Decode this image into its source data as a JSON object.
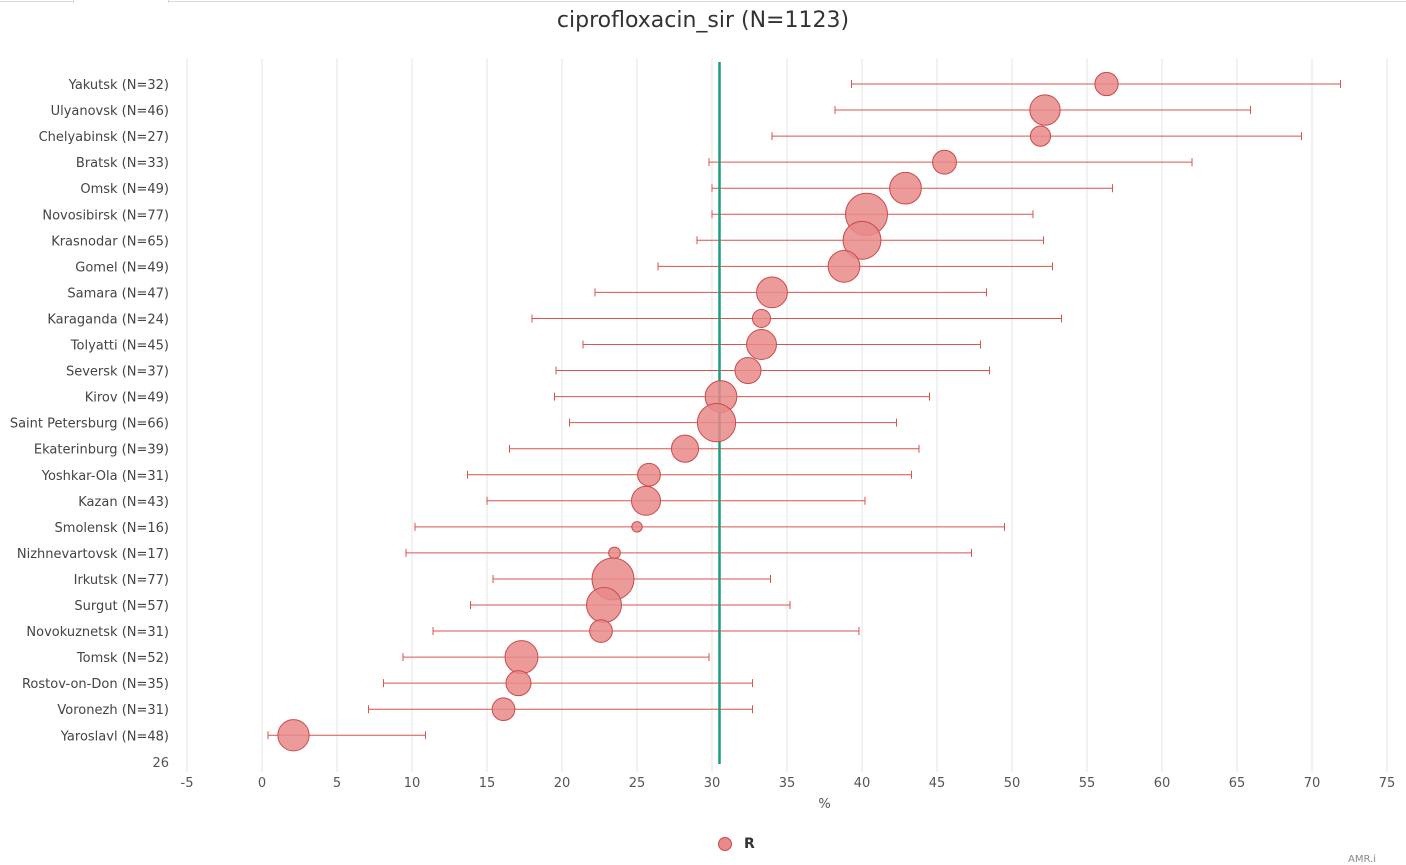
{
  "tab": {
    "label": ""
  },
  "legend": {
    "label": "R",
    "color": "#e9898a",
    "border_color": "#c94a4c"
  },
  "corner_text": "AMR.i",
  "colors": {
    "point_fill": "#e9898a",
    "point_stroke": "#c94a4c",
    "error_bar": "#d9534f",
    "reference_line": "#1a9e7f",
    "grid": "#e6e6e6"
  },
  "chart_data": {
    "type": "scatter",
    "subtype": "forest-plot-with-error-bars",
    "title": "ciprofloxacin_sir (N=1123)",
    "xlabel": "%",
    "ylabel": "",
    "xlim": [
      -5,
      75
    ],
    "xticks": [
      -5,
      0,
      5,
      10,
      15,
      20,
      25,
      30,
      35,
      40,
      45,
      50,
      55,
      60,
      65,
      70,
      75
    ],
    "extra_ytick_label": "26",
    "reference_line_x": 30.5,
    "grid": {
      "vertical": true,
      "horizontal": false
    },
    "legend_position": "bottom",
    "series": [
      {
        "name": "R"
      }
    ],
    "rows": [
      {
        "label": "Yakutsk (N=32)",
        "n": 32,
        "value": 56.3,
        "ci_low": 39.3,
        "ci_high": 71.9
      },
      {
        "label": "Ulyanovsk (N=46)",
        "n": 46,
        "value": 52.2,
        "ci_low": 38.2,
        "ci_high": 65.9
      },
      {
        "label": "Chelyabinsk (N=27)",
        "n": 27,
        "value": 51.9,
        "ci_low": 34.0,
        "ci_high": 69.3
      },
      {
        "label": "Bratsk (N=33)",
        "n": 33,
        "value": 45.5,
        "ci_low": 29.8,
        "ci_high": 62.0
      },
      {
        "label": "Omsk (N=49)",
        "n": 49,
        "value": 42.9,
        "ci_low": 30.0,
        "ci_high": 56.7
      },
      {
        "label": "Novosibirsk (N=77)",
        "n": 77,
        "value": 40.3,
        "ci_low": 30.0,
        "ci_high": 51.4
      },
      {
        "label": "Krasnodar (N=65)",
        "n": 65,
        "value": 40.0,
        "ci_low": 29.0,
        "ci_high": 52.1
      },
      {
        "label": "Gomel (N=49)",
        "n": 49,
        "value": 38.8,
        "ci_low": 26.4,
        "ci_high": 52.7
      },
      {
        "label": "Samara (N=47)",
        "n": 47,
        "value": 34.0,
        "ci_low": 22.2,
        "ci_high": 48.3
      },
      {
        "label": "Karaganda (N=24)",
        "n": 24,
        "value": 33.3,
        "ci_low": 18.0,
        "ci_high": 53.3
      },
      {
        "label": "Tolyatti (N=45)",
        "n": 45,
        "value": 33.3,
        "ci_low": 21.4,
        "ci_high": 47.9
      },
      {
        "label": "Seversk (N=37)",
        "n": 37,
        "value": 32.4,
        "ci_low": 19.6,
        "ci_high": 48.5
      },
      {
        "label": "Kirov (N=49)",
        "n": 49,
        "value": 30.6,
        "ci_low": 19.5,
        "ci_high": 44.5
      },
      {
        "label": "Saint Petersburg (N=66)",
        "n": 66,
        "value": 30.3,
        "ci_low": 20.5,
        "ci_high": 42.3
      },
      {
        "label": "Ekaterinburg (N=39)",
        "n": 39,
        "value": 28.2,
        "ci_low": 16.5,
        "ci_high": 43.8
      },
      {
        "label": "Yoshkar-Ola (N=31)",
        "n": 31,
        "value": 25.8,
        "ci_low": 13.7,
        "ci_high": 43.3
      },
      {
        "label": "Kazan (N=43)",
        "n": 43,
        "value": 25.6,
        "ci_low": 15.0,
        "ci_high": 40.2
      },
      {
        "label": "Smolensk (N=16)",
        "n": 16,
        "value": 25.0,
        "ci_low": 10.2,
        "ci_high": 49.5
      },
      {
        "label": "Nizhnevartovsk (N=17)",
        "n": 17,
        "value": 23.5,
        "ci_low": 9.6,
        "ci_high": 47.3
      },
      {
        "label": "Irkutsk (N=77)",
        "n": 77,
        "value": 23.4,
        "ci_low": 15.4,
        "ci_high": 33.9
      },
      {
        "label": "Surgut (N=57)",
        "n": 57,
        "value": 22.8,
        "ci_low": 13.9,
        "ci_high": 35.2
      },
      {
        "label": "Novokuznetsk (N=31)",
        "n": 31,
        "value": 22.6,
        "ci_low": 11.4,
        "ci_high": 39.8
      },
      {
        "label": "Tomsk (N=52)",
        "n": 52,
        "value": 17.3,
        "ci_low": 9.4,
        "ci_high": 29.8
      },
      {
        "label": "Rostov-on-Don (N=35)",
        "n": 35,
        "value": 17.1,
        "ci_low": 8.1,
        "ci_high": 32.7
      },
      {
        "label": "Voronezh (N=31)",
        "n": 31,
        "value": 16.1,
        "ci_low": 7.1,
        "ci_high": 32.7
      },
      {
        "label": "Yaroslavl (N=48)",
        "n": 48,
        "value": 2.1,
        "ci_low": 0.4,
        "ci_high": 10.9
      }
    ]
  }
}
